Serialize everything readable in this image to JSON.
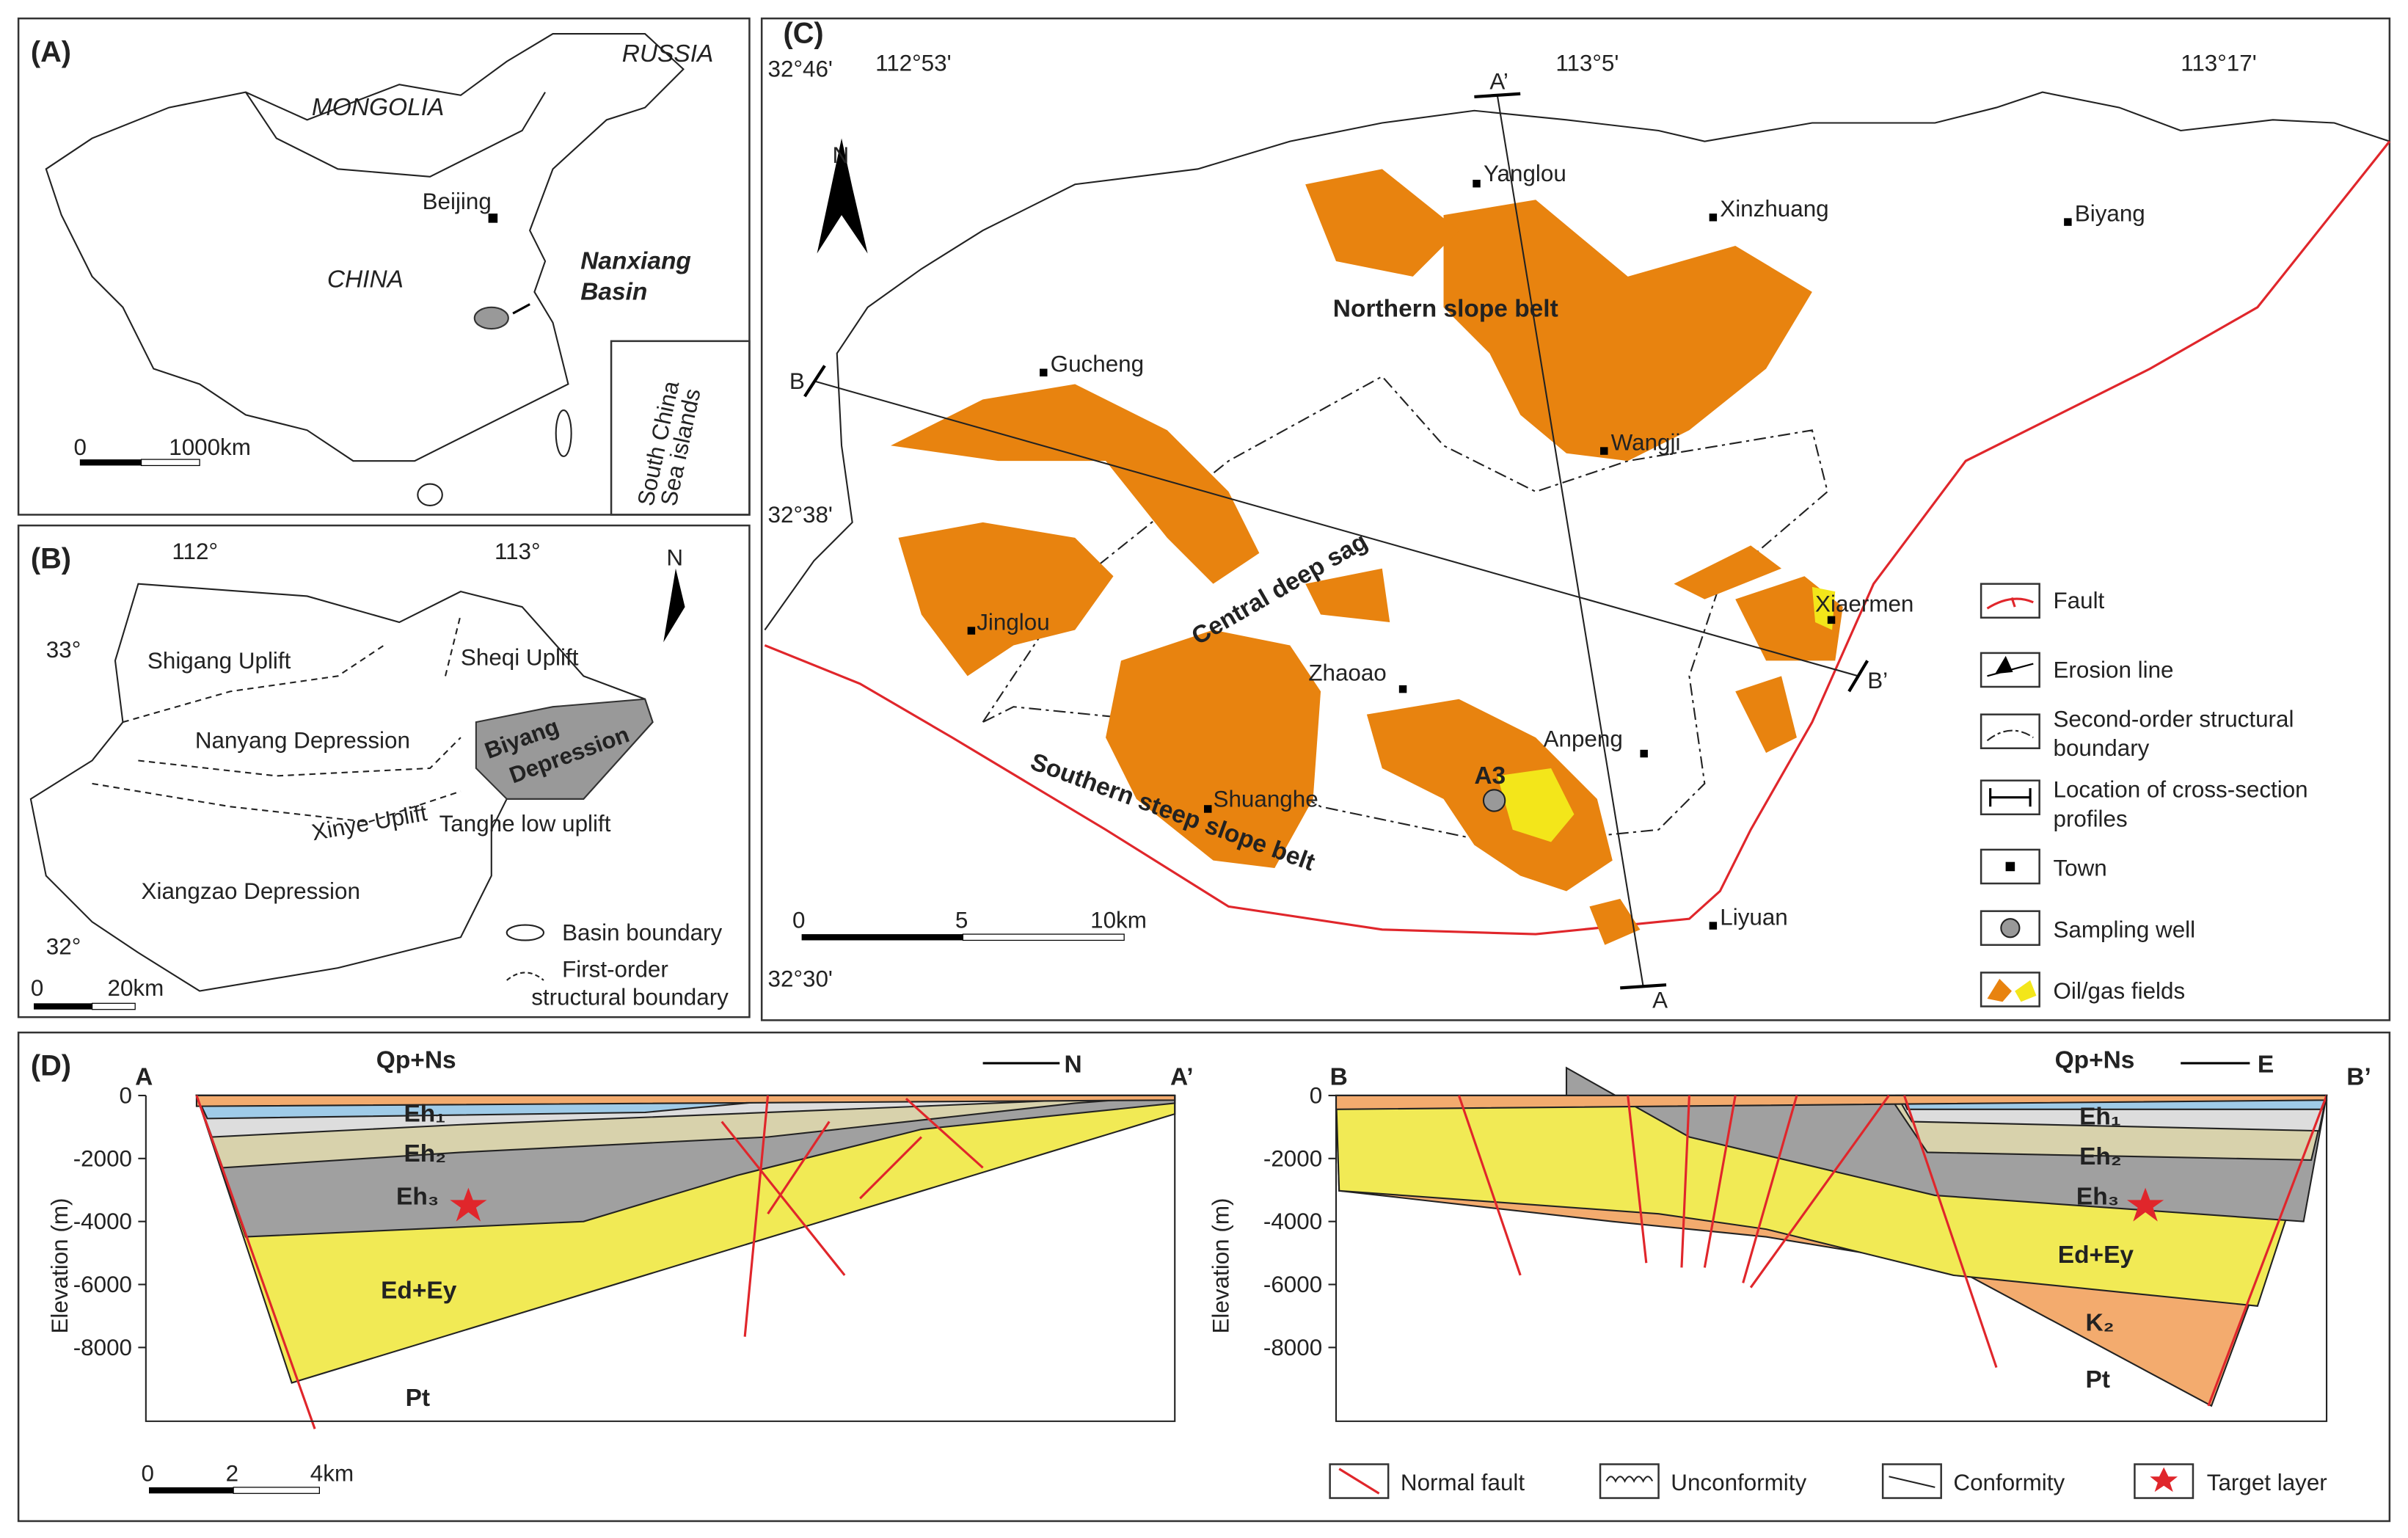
{
  "panel_a": {
    "label": "(A)",
    "russia": "RUSSIA",
    "mongolia": "MONGOLIA",
    "china": "CHINA",
    "beijing": "Beijing",
    "basin": [
      "Nanxiang",
      "Basin"
    ],
    "inset": [
      "South China",
      "Sea islands"
    ],
    "scale": [
      "0",
      "1000km"
    ]
  },
  "panel_b": {
    "label": "(B)",
    "lon": [
      "112°",
      "113°"
    ],
    "lat": [
      "33°",
      "32°"
    ],
    "north": "N",
    "units": {
      "shigang": "Shigang Uplift",
      "sheqi": "Sheqi Uplift",
      "nanyang": "Nanyang Depression",
      "biyang": [
        "Biyang",
        "Depression"
      ],
      "xinye": "Xinye Uplift",
      "tanghe": "Tanghe low uplift",
      "xiangzao": "Xiangzao Depression"
    },
    "scale": [
      "0",
      "20km"
    ],
    "legend": {
      "basin": "Basin boundary",
      "first_order": [
        "First-order",
        "structural boundary"
      ]
    }
  },
  "panel_c": {
    "label": "(C)",
    "lon": [
      "112°53'",
      "113°5'",
      "113°17'"
    ],
    "lat": [
      "32°46'",
      "32°38'",
      "32°30'"
    ],
    "north": "N",
    "towns": {
      "yanglou": "Yanglou",
      "xinzhuang": "Xinzhuang",
      "biyang": "Biyang",
      "gucheng": "Gucheng",
      "wangji": "Wangji",
      "jinglou": "Jinglou",
      "xiaermen": "Xiaermen",
      "zhaoao": "Zhaoao",
      "anpeng": "Anpeng",
      "shuanghe": "Shuanghe",
      "liyuan": "Liyuan"
    },
    "belts": {
      "north": "Northern slope belt",
      "central": "Central deep sag",
      "south": "Southern steep slope belt"
    },
    "well": "A3",
    "ends": {
      "a_prime": "A’",
      "a": "A",
      "b": "B",
      "b_prime": "B’"
    },
    "scale": [
      "0",
      "5",
      "10km"
    ],
    "legend": {
      "fault": "Fault",
      "erosion": "Erosion line",
      "second_order": [
        "Second-order structural",
        "boundary"
      ],
      "profile": [
        "Location of cross-section",
        "profiles"
      ],
      "town": "Town",
      "well": "Sampling well",
      "fields": "Oil/gas fields"
    }
  },
  "panel_d": {
    "label": "(D)",
    "axis_title": "Elevation (m)",
    "ticks": [
      0,
      -2000,
      -4000,
      -6000,
      -8000
    ],
    "left": {
      "start": "A",
      "end": "A’",
      "direction": "N",
      "top": "Qp+Ns",
      "eh1": "Eh₁",
      "eh2": "Eh₂",
      "eh3": "Eh₃",
      "ed": "Ed+Ey",
      "pt": "Pt"
    },
    "right": {
      "start": "B",
      "end": "B’",
      "direction": "E",
      "top": "Qp+Ns",
      "eh1": "Eh₁",
      "eh2": "Eh₂",
      "eh3": "Eh₃",
      "ed": "Ed+Ey",
      "k2": "K₂",
      "pt": "Pt"
    },
    "scale": [
      "0",
      "2",
      "4km"
    ],
    "legend": {
      "fault": "Normal fault",
      "unconformity": "Unconformity",
      "conformity": "Conformity",
      "target": "Target layer"
    }
  }
}
